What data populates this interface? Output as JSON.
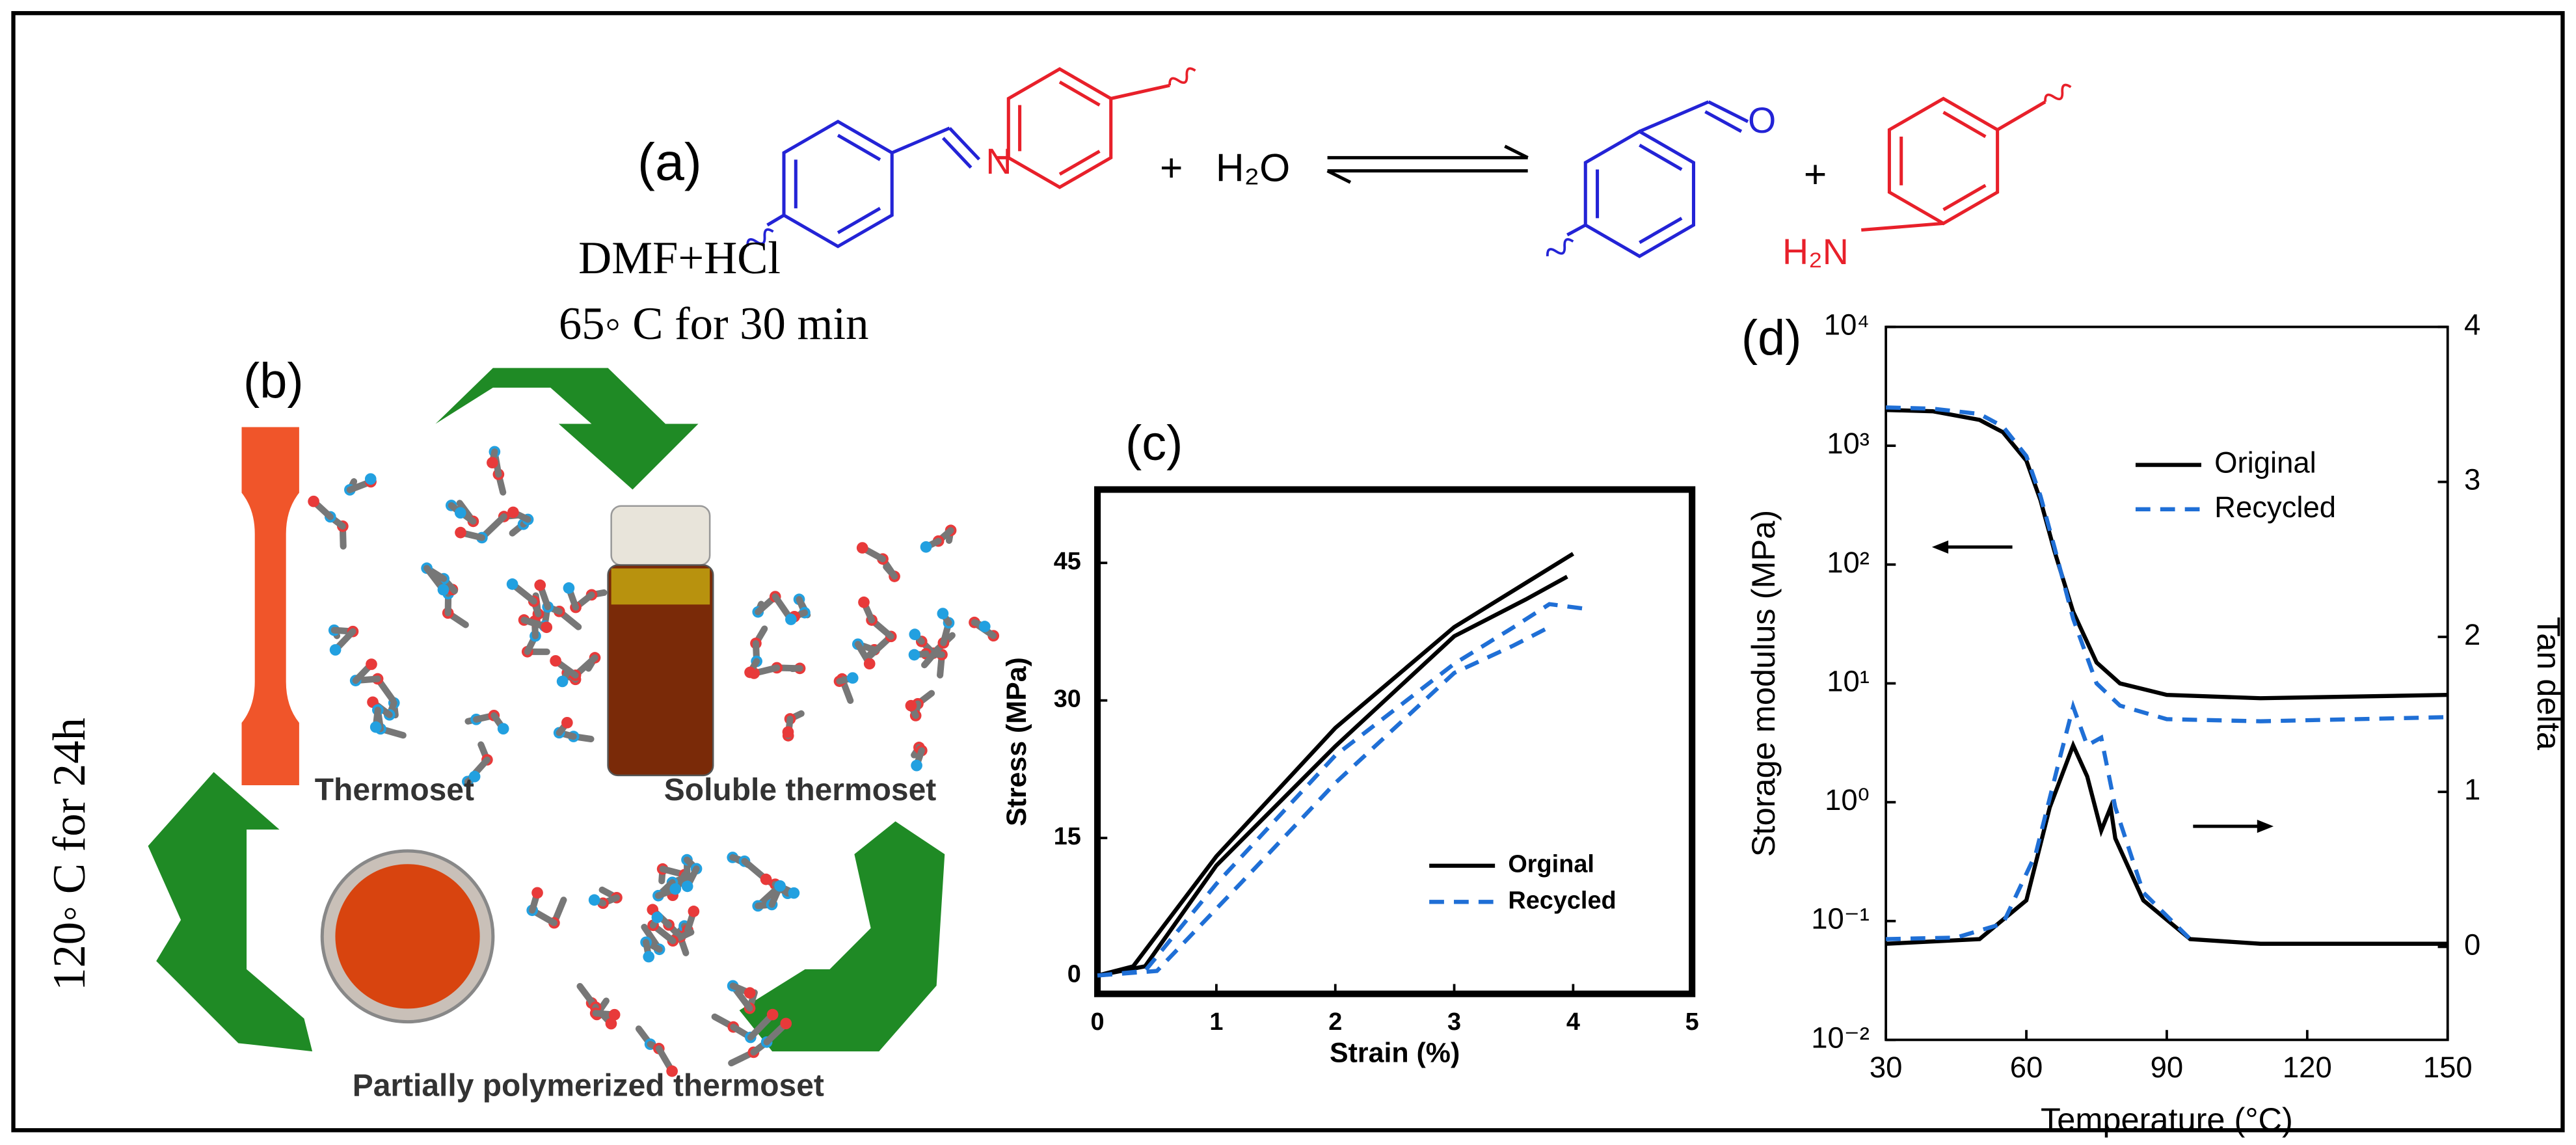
{
  "panel_a": {
    "label": "(a)",
    "plus_left": "+",
    "water": "H₂O",
    "plus_right": "+",
    "imine_n": "N",
    "aldehyde_o": "O",
    "amine": "H₂N"
  },
  "panel_b": {
    "label": "(b)",
    "condition_top": [
      "DMF+HCl",
      "65◦ C for 30 min"
    ],
    "condition_left": "120◦ C for 24h",
    "thermoset": "Thermoset",
    "soluble": "Soluble thermoset",
    "partial": "Partially polymerized thermoset"
  },
  "chart_data": [
    {
      "type": "line",
      "panel_label": "(c)",
      "xlabel": "Strain (%)",
      "ylabel": "Stress (MPa)",
      "xlim": [
        0,
        5
      ],
      "ylim": [
        -2,
        53
      ],
      "xticks": [
        0,
        1,
        2,
        3,
        4,
        5
      ],
      "yticks": [
        0,
        15,
        30,
        45
      ],
      "legend": "lower right",
      "series": [
        {
          "name": "Orginal",
          "color": "#000000",
          "style": "solid",
          "x": [
            0,
            0.3,
            1,
            2,
            3,
            3.5,
            4
          ],
          "values": [
            0,
            1,
            13,
            27,
            38,
            42,
            46
          ]
        },
        {
          "name": "Orginal",
          "color": "#000000",
          "style": "solid",
          "x": [
            0,
            0.4,
            1,
            2,
            3,
            3.6,
            3.95
          ],
          "values": [
            0,
            1,
            12,
            25,
            37,
            41,
            43.5
          ]
        },
        {
          "name": "Recycled",
          "color": "#1f6fd6",
          "style": "dashed",
          "x": [
            0,
            0.4,
            1,
            2,
            3,
            3.5,
            3.8,
            4.1
          ],
          "values": [
            0,
            0.5,
            10,
            24,
            34,
            38,
            40.5,
            40
          ]
        },
        {
          "name": "Recycled",
          "color": "#1f6fd6",
          "style": "dashed",
          "x": [
            0,
            0.5,
            1.2,
            2,
            3,
            3.5,
            3.8
          ],
          "values": [
            0,
            0.5,
            10,
            21,
            33,
            36,
            38
          ]
        }
      ]
    },
    {
      "type": "line",
      "panel_label": "(d)",
      "xlabel": "Temperature (°C)",
      "ylabel": "Storage modulus (MPa)",
      "y2label": "Tan delta",
      "xlim": [
        30,
        150
      ],
      "ylim": [
        0.01,
        10000
      ],
      "ylog": true,
      "y2lim": [
        -0.6,
        4
      ],
      "legend": "upper right",
      "xticks": [
        30,
        60,
        90,
        120,
        150
      ],
      "yticks": [
        {
          "value": 10000,
          "label": "10⁴"
        },
        {
          "value": 1000,
          "label": "10³"
        },
        {
          "value": 100,
          "label": "10²"
        },
        {
          "value": 10,
          "label": "10¹"
        },
        {
          "value": 1,
          "label": "10⁰"
        },
        {
          "value": 0.1,
          "label": "10⁻¹"
        },
        {
          "value": 0.01,
          "label": "10⁻²"
        }
      ],
      "y2ticks": [
        0,
        1,
        2,
        3,
        4
      ],
      "series": [
        {
          "name": "Original",
          "color": "#000000",
          "style": "solid",
          "x": [
            30,
            40,
            50,
            55,
            60,
            63,
            66,
            70,
            75,
            80,
            90,
            110,
            150
          ],
          "values": [
            2000,
            1950,
            1650,
            1300,
            750,
            350,
            130,
            40,
            15,
            10,
            8,
            7.5,
            8
          ]
        },
        {
          "name": "Recycled",
          "color": "#1f6fd6",
          "style": "dashed",
          "x": [
            30,
            40,
            50,
            55,
            60,
            63,
            66,
            70,
            75,
            80,
            90,
            110,
            150
          ],
          "values": [
            2100,
            2050,
            1850,
            1450,
            820,
            380,
            140,
            35,
            10,
            6.5,
            5,
            4.8,
            5.2
          ]
        },
        {
          "name": "Original",
          "color": "#000000",
          "style": "solid",
          "axis": "y2",
          "x": [
            30,
            50,
            60,
            65,
            70,
            73,
            76,
            78,
            79,
            85,
            95,
            110,
            150
          ],
          "values": [
            0.02,
            0.05,
            0.3,
            0.9,
            1.3,
            1.1,
            0.75,
            0.9,
            0.7,
            0.3,
            0.05,
            0.02,
            0.02
          ]
        },
        {
          "name": "Recycled",
          "color": "#1f6fd6",
          "style": "dashed",
          "axis": "y2",
          "x": [
            30,
            45,
            55,
            62,
            67,
            70,
            73,
            76,
            79,
            85,
            95
          ],
          "values": [
            0.05,
            0.06,
            0.15,
            0.6,
            1.2,
            1.55,
            1.3,
            1.35,
            0.9,
            0.35,
            0.05
          ]
        }
      ]
    }
  ]
}
